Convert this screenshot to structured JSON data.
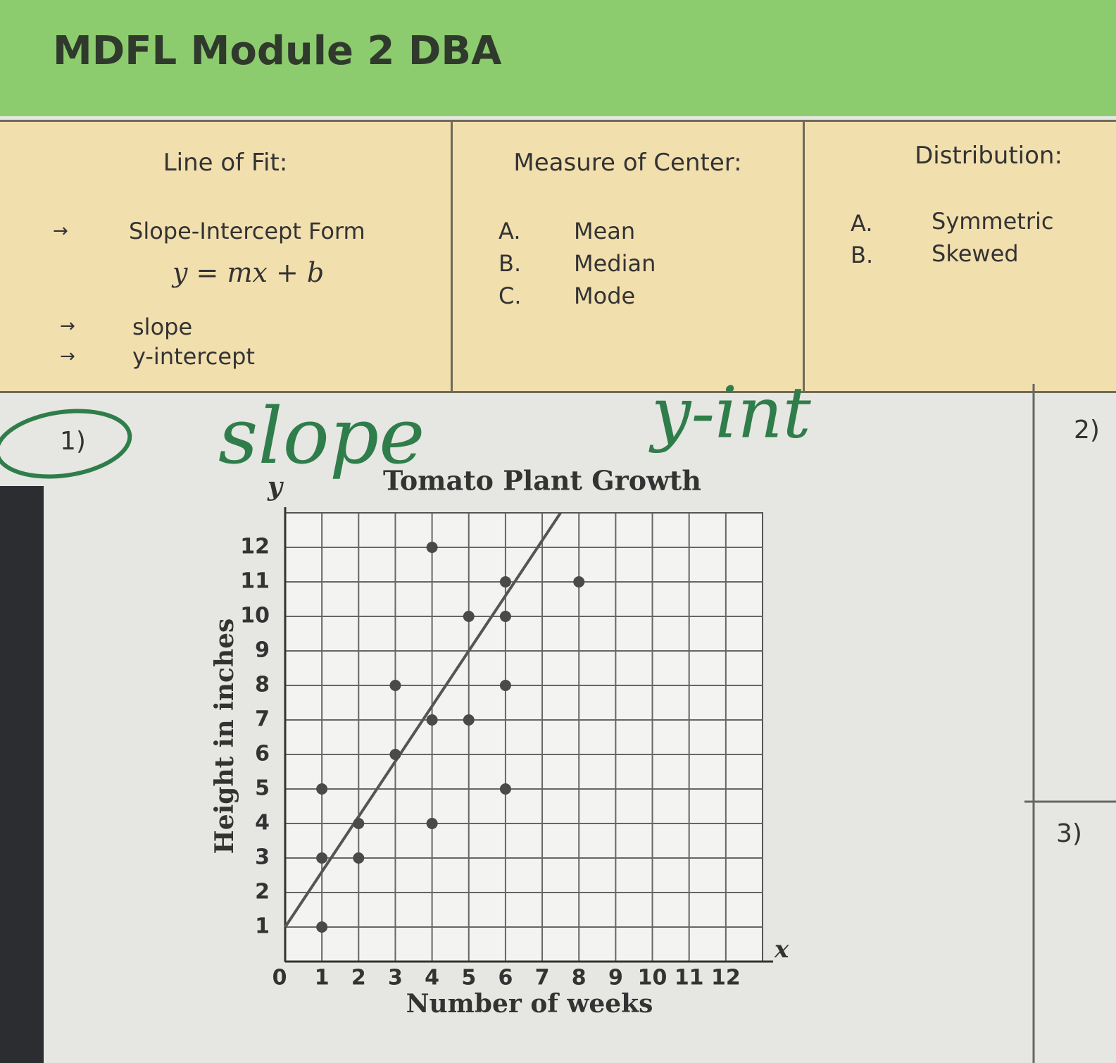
{
  "header": {
    "title": "MDFL Module 2 DBA"
  },
  "table": {
    "columns": [
      {
        "heading": "Line of Fit:",
        "items": [
          "Slope-Intercept Form",
          "y = mx + b",
          "slope",
          "y-intercept"
        ]
      },
      {
        "heading": "Measure of Center:",
        "items": [
          {
            "letter": "A.",
            "text": "Mean"
          },
          {
            "letter": "B.",
            "text": "Median"
          },
          {
            "letter": "C.",
            "text": "Mode"
          }
        ]
      },
      {
        "heading": "Distribution:",
        "items": [
          {
            "letter": "A.",
            "text": "Symmetric"
          },
          {
            "letter": "B.",
            "text": "Skewed"
          }
        ]
      }
    ]
  },
  "questions": [
    "1)",
    "2)",
    "3)"
  ],
  "annotations": [
    "slope",
    "y-int"
  ],
  "chart_data": {
    "type": "scatter",
    "title": "Tomato Plant Growth",
    "x_label": "Number of weeks",
    "y_label": "Height in inches",
    "x_axis_letter": "x",
    "y_axis_letter": "y",
    "x": [
      1,
      1,
      1,
      2,
      2,
      3,
      3,
      4,
      4,
      4,
      5,
      5,
      6,
      6,
      6,
      6,
      8
    ],
    "y": [
      1,
      3,
      5,
      3,
      4,
      6,
      8,
      4,
      7,
      12,
      7,
      10,
      5,
      8,
      10,
      11,
      11
    ],
    "line_of_fit": {
      "x": [
        0,
        7.5
      ],
      "y": [
        1,
        13
      ]
    },
    "xlim": [
      0,
      13
    ],
    "ylim": [
      0,
      13
    ],
    "xticks": [
      0,
      1,
      2,
      3,
      4,
      5,
      6,
      7,
      8,
      9,
      10,
      11,
      12
    ],
    "yticks": [
      1,
      2,
      3,
      4,
      5,
      6,
      7,
      8,
      9,
      10,
      11,
      12
    ],
    "grid": true,
    "color": "#4a4a4a"
  }
}
